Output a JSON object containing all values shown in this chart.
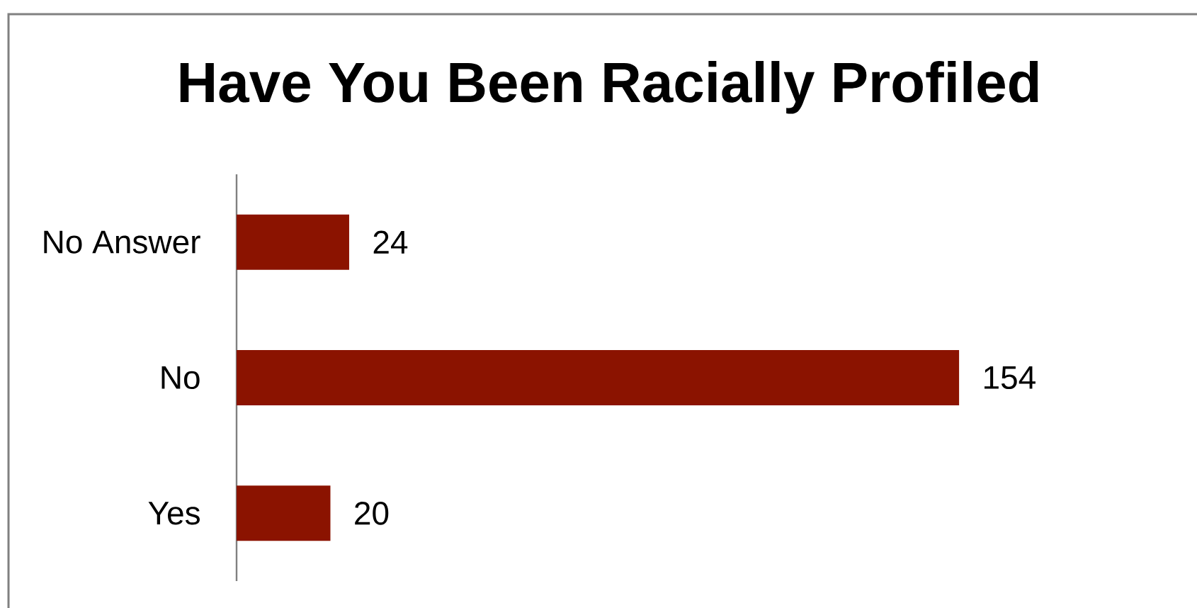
{
  "chart_data": {
    "type": "bar",
    "orientation": "horizontal",
    "title": "Have You Been Racially Profiled",
    "categories": [
      "No Answer",
      "No",
      "Yes"
    ],
    "values": [
      24,
      154,
      20
    ],
    "color": "#8b1300",
    "data_labels": true
  }
}
